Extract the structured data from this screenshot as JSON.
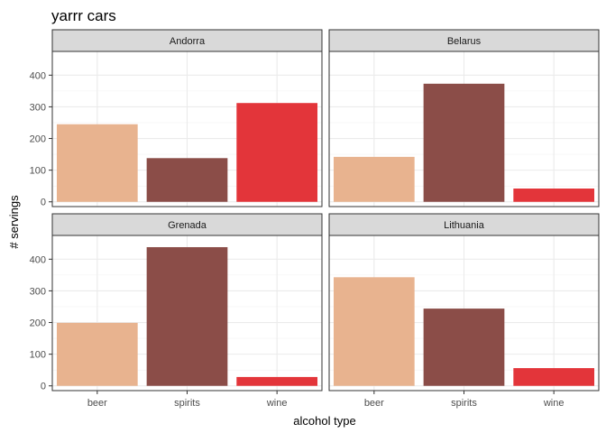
{
  "chart_data": {
    "type": "bar",
    "title": "yarrr cars",
    "xlabel": "alcohol type",
    "ylabel": "# servings",
    "categories": [
      "beer",
      "spirits",
      "wine"
    ],
    "colors": {
      "beer": "#e8b38f",
      "spirits": "#8b4d48",
      "wine": "#e3353a"
    },
    "panel_background": "#ffffff",
    "strip_background": "#d9d9d9",
    "grid": true,
    "ylim": [
      -15,
      475
    ],
    "yticks": [
      0,
      100,
      200,
      300,
      400
    ],
    "panels": [
      {
        "name": "Andorra",
        "values": [
          245,
          138,
          312
        ]
      },
      {
        "name": "Belarus",
        "values": [
          142,
          373,
          42
        ]
      },
      {
        "name": "Grenada",
        "values": [
          199,
          438,
          28
        ]
      },
      {
        "name": "Lithuania",
        "values": [
          343,
          244,
          56
        ]
      }
    ]
  }
}
